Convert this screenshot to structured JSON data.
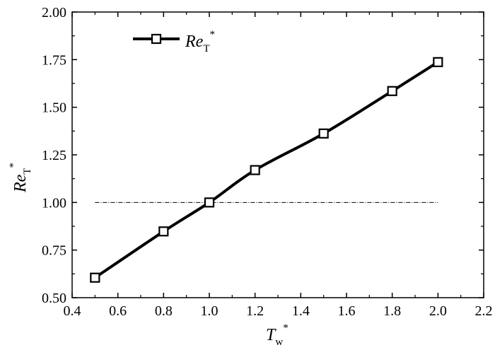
{
  "chart_data": {
    "type": "line",
    "x": [
      0.5,
      0.8,
      1.0,
      1.2,
      1.5,
      1.8,
      2.0
    ],
    "series": [
      {
        "name_main": "Re",
        "name_sub": "T",
        "name_sup": "*",
        "values": [
          0.605,
          0.848,
          1.0,
          1.17,
          1.362,
          1.585,
          1.737
        ],
        "color": "#000000",
        "marker": "open-square"
      }
    ],
    "reference_line": {
      "y": 1.0,
      "x_range": [
        0.5,
        2.0
      ],
      "style": "dash-dot"
    },
    "xlabel_main": "T",
    "xlabel_sub": "w",
    "xlabel_sup": "*",
    "ylabel_main": "Re",
    "ylabel_sub": "T",
    "ylabel_sup": "*",
    "xlim": [
      0.4,
      2.2
    ],
    "ylim": [
      0.5,
      2.0
    ],
    "xticks": [
      "0.4",
      "0.6",
      "0.8",
      "1.0",
      "1.2",
      "1.4",
      "1.6",
      "1.8",
      "2.0",
      "2.2"
    ],
    "yticks": [
      "0.50",
      "0.75",
      "1.00",
      "1.25",
      "1.50",
      "1.75",
      "2.00"
    ],
    "grid": false,
    "legend_position": "top-left"
  }
}
